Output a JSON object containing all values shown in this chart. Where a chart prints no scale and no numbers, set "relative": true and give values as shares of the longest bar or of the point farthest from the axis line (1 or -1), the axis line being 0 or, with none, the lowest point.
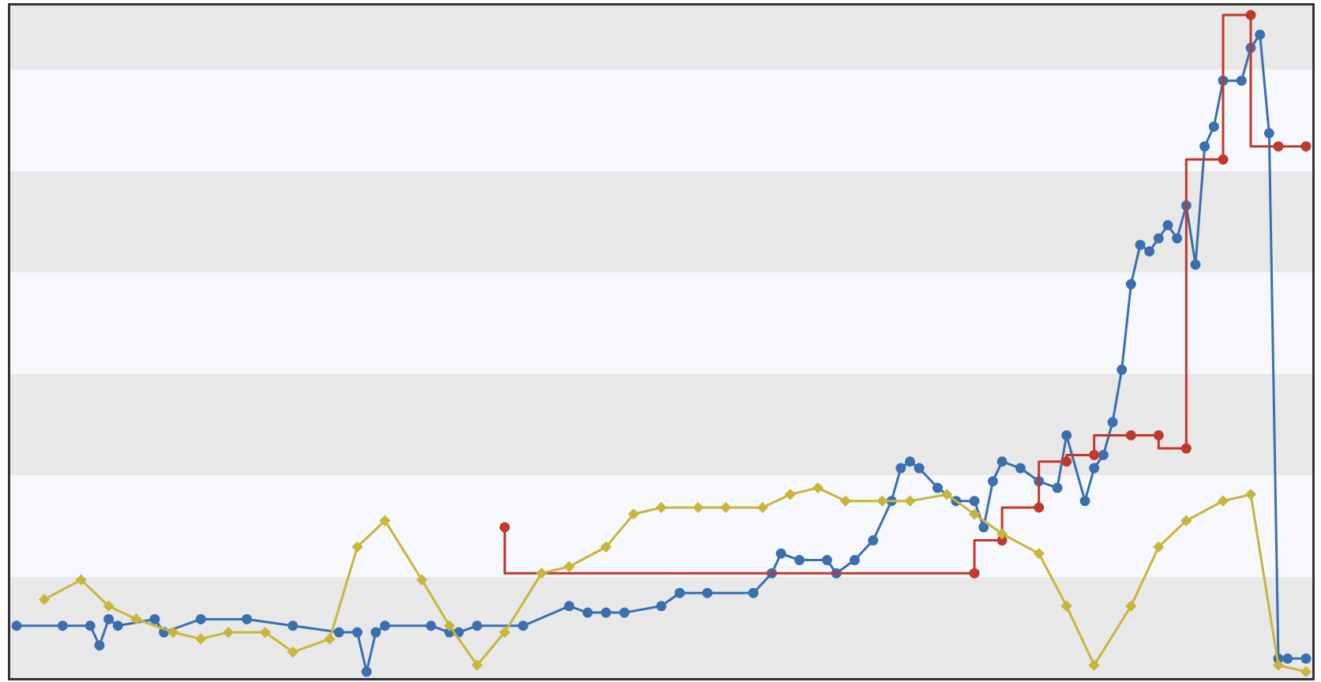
{
  "chart_data": {
    "type": "line",
    "relative": true,
    "categories": [
      null,
      null,
      null,
      null,
      null,
      null,
      null,
      null,
      null,
      null,
      null,
      null,
      null,
      null,
      null,
      null,
      null,
      null,
      null,
      null,
      null,
      null,
      null,
      null,
      null,
      null,
      null,
      null,
      null,
      null,
      null,
      null,
      null,
      null,
      null,
      null,
      null,
      null,
      null,
      null,
      null,
      null,
      null,
      null,
      null,
      null,
      null,
      null,
      null,
      null,
      null,
      null,
      null,
      null,
      null,
      null,
      null,
      null,
      null,
      null,
      null,
      null,
      null,
      null,
      null,
      null,
      null,
      null,
      null,
      null,
      null,
      null,
      null,
      null,
      null,
      null,
      null,
      null,
      null,
      null,
      null,
      null,
      null,
      null,
      null,
      null,
      null,
      null,
      null,
      null,
      null,
      null,
      null,
      null,
      null,
      null,
      null,
      null,
      null,
      null,
      null,
      null,
      null,
      null,
      null,
      null,
      null,
      null,
      null,
      null,
      null,
      null,
      null,
      null,
      null,
      null,
      null,
      null,
      null,
      null,
      null,
      null,
      null,
      null,
      null,
      null,
      null,
      null,
      null,
      null,
      null,
      null,
      null,
      null,
      null,
      null,
      null,
      null,
      null,
      null,
      null
    ],
    "tick_labels": false,
    "series": [
      {
        "type": "line",
        "color": "#c9b53c",
        "marker": "diamond",
        "values": [
          null,
          null,
          null,
          0.11,
          null,
          null,
          null,
          0.14,
          null,
          null,
          0.1,
          null,
          null,
          0.08,
          null,
          null,
          null,
          0.06,
          null,
          null,
          0.05,
          null,
          null,
          0.06,
          null,
          null,
          null,
          0.06,
          null,
          null,
          0.03,
          null,
          null,
          null,
          0.05,
          null,
          null,
          0.19,
          null,
          null,
          0.23,
          null,
          null,
          null,
          0.14,
          null,
          null,
          0.07,
          null,
          null,
          0.01,
          null,
          null,
          0.06,
          null,
          null,
          null,
          0.15,
          null,
          null,
          0.16,
          null,
          null,
          null,
          0.19,
          null,
          null,
          0.24,
          null,
          null,
          0.25,
          null,
          null,
          null,
          0.25,
          null,
          null,
          0.25,
          null,
          null,
          null,
          0.25,
          null,
          null,
          0.27,
          null,
          null,
          0.28,
          null,
          null,
          0.26,
          null,
          null,
          null,
          0.26,
          null,
          null,
          0.26,
          null,
          null,
          null,
          0.27,
          null,
          null,
          0.24,
          null,
          null,
          0.21,
          null,
          null,
          null,
          0.18,
          null,
          null,
          0.1,
          null,
          null,
          0.01,
          null,
          null,
          null,
          0.1,
          null,
          null,
          0.19,
          null,
          null,
          0.23,
          null,
          null,
          null,
          0.26,
          null,
          null,
          0.27,
          null,
          null,
          0.01,
          null,
          null,
          0.0
        ]
      },
      {
        "type": "step",
        "color": "#c0392b",
        "marker": "circle",
        "values": [
          null,
          null,
          null,
          null,
          null,
          null,
          null,
          null,
          null,
          null,
          null,
          null,
          null,
          null,
          null,
          null,
          null,
          null,
          null,
          null,
          null,
          null,
          null,
          null,
          null,
          null,
          null,
          null,
          null,
          null,
          null,
          null,
          null,
          null,
          null,
          null,
          null,
          null,
          null,
          null,
          null,
          null,
          null,
          null,
          null,
          null,
          null,
          null,
          null,
          null,
          null,
          null,
          null,
          0.22,
          null,
          null,
          null,
          null,
          null,
          null,
          null,
          null,
          null,
          null,
          null,
          null,
          null,
          null,
          null,
          null,
          null,
          null,
          null,
          null,
          null,
          null,
          null,
          null,
          null,
          null,
          null,
          null,
          null,
          null,
          null,
          null,
          null,
          null,
          null,
          null,
          null,
          null,
          null,
          null,
          null,
          null,
          null,
          null,
          null,
          null,
          null,
          null,
          null,
          null,
          0.15,
          null,
          null,
          0.2,
          null,
          null,
          null,
          0.25,
          null,
          null,
          0.32,
          null,
          null,
          0.33,
          null,
          null,
          null,
          0.36,
          null,
          null,
          0.36,
          null,
          null,
          0.34,
          null,
          null,
          null,
          0.78,
          null,
          null,
          1.0,
          null,
          null,
          0.8,
          null,
          null,
          0.8
        ]
      },
      {
        "type": "line",
        "color": "#3a6fb0",
        "marker": "circle",
        "values": [
          0.07,
          null,
          null,
          null,
          null,
          0.07,
          null,
          null,
          0.07,
          0.04,
          0.08,
          0.07,
          null,
          null,
          null,
          0.08,
          0.06,
          null,
          null,
          null,
          0.08,
          null,
          null,
          null,
          null,
          0.08,
          null,
          null,
          null,
          null,
          0.07,
          null,
          null,
          null,
          null,
          0.06,
          null,
          0.06,
          0.0,
          0.06,
          0.07,
          null,
          null,
          null,
          null,
          0.07,
          null,
          0.06,
          0.06,
          null,
          0.07,
          null,
          null,
          null,
          null,
          0.07,
          null,
          null,
          null,
          null,
          0.1,
          null,
          0.09,
          null,
          0.09,
          null,
          0.09,
          null,
          null,
          null,
          0.1,
          null,
          0.12,
          null,
          null,
          0.12,
          null,
          null,
          null,
          null,
          0.12,
          null,
          0.15,
          0.18,
          null,
          0.17,
          null,
          null,
          0.17,
          0.15,
          null,
          0.17,
          null,
          0.2,
          null,
          0.26,
          0.31,
          0.32,
          0.31,
          null,
          0.28,
          null,
          0.26,
          null,
          0.26,
          0.22,
          0.29,
          0.32,
          null,
          0.31,
          null,
          0.29,
          null,
          0.28,
          0.36,
          null,
          0.26,
          0.31,
          0.33,
          0.38,
          0.46,
          0.59,
          0.65,
          0.64,
          0.66,
          0.68,
          0.66,
          0.71,
          0.62,
          0.8,
          0.83,
          0.9,
          null,
          0.9,
          0.95,
          0.97,
          0.82,
          0.02,
          0.02,
          null,
          0.02
        ]
      }
    ]
  }
}
